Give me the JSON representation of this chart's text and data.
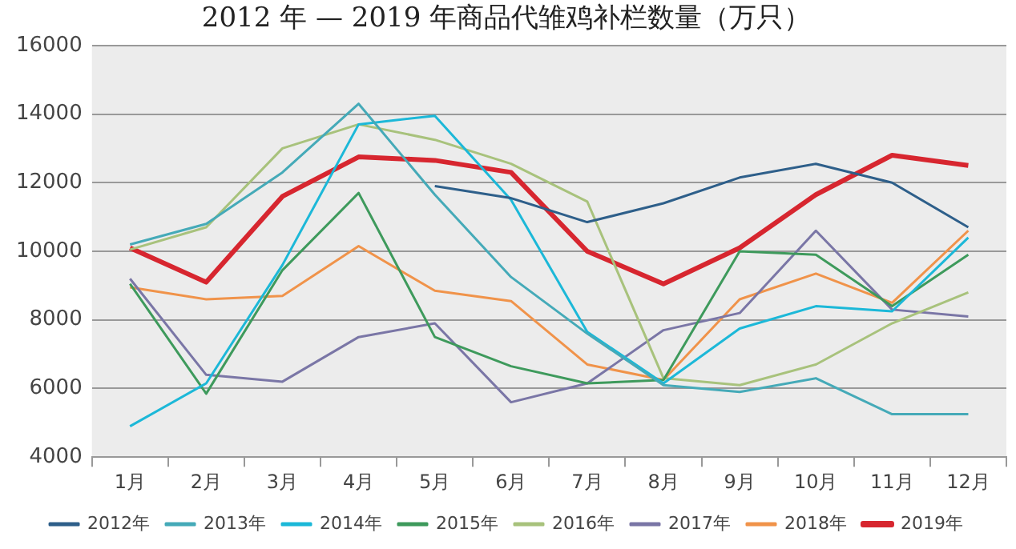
{
  "chart_data": {
    "type": "line",
    "title": "2012 年 — 2019 年商品代雏鸡补栏数量（万只）",
    "categories": [
      "1月",
      "2月",
      "3月",
      "4月",
      "5月",
      "6月",
      "7月",
      "8月",
      "9月",
      "10月",
      "11月",
      "12月"
    ],
    "series": [
      {
        "name": "2012年",
        "color": "#2e5f8a",
        "values": [
          null,
          null,
          null,
          null,
          11900,
          11550,
          10850,
          11400,
          12150,
          12550,
          12000,
          10700
        ]
      },
      {
        "name": "2013年",
        "color": "#45aab8",
        "values": [
          10200,
          10800,
          12300,
          14300,
          11650,
          9250,
          7600,
          6100,
          5900,
          6300,
          5250,
          5250
        ]
      },
      {
        "name": "2014年",
        "color": "#1cb8d8",
        "values": [
          4900,
          6150,
          9600,
          13700,
          13950,
          11500,
          7650,
          6150,
          7750,
          8400,
          8250,
          10400
        ]
      },
      {
        "name": "2015年",
        "color": "#3e9a5c",
        "values": [
          9050,
          5850,
          9450,
          11700,
          7500,
          6650,
          6150,
          6250,
          10000,
          9900,
          8400,
          9900
        ]
      },
      {
        "name": "2016年",
        "color": "#a8c27c",
        "values": [
          10050,
          10700,
          13000,
          13700,
          13250,
          12550,
          11450,
          6300,
          6100,
          6700,
          7900,
          8800
        ]
      },
      {
        "name": "2017年",
        "color": "#7a76a6",
        "values": [
          9200,
          6400,
          6200,
          7500,
          7900,
          5600,
          6150,
          7700,
          8200,
          10600,
          8300,
          8100
        ]
      },
      {
        "name": "2018年",
        "color": "#f0934a",
        "values": [
          8950,
          8600,
          8700,
          10150,
          8850,
          8550,
          6700,
          6250,
          8600,
          9350,
          8500,
          10600
        ]
      },
      {
        "name": "2019年",
        "color": "#d7262f",
        "values": [
          10100,
          9100,
          11600,
          12750,
          12650,
          12300,
          10000,
          9050,
          10100,
          11650,
          12800,
          12500
        ]
      }
    ],
    "ylim": [
      4000,
      16000
    ],
    "yticks": [
      4000,
      6000,
      8000,
      10000,
      12000,
      14000,
      16000
    ],
    "grid": "y",
    "legend": "bottom",
    "marker": "none",
    "line_style": "solid"
  }
}
